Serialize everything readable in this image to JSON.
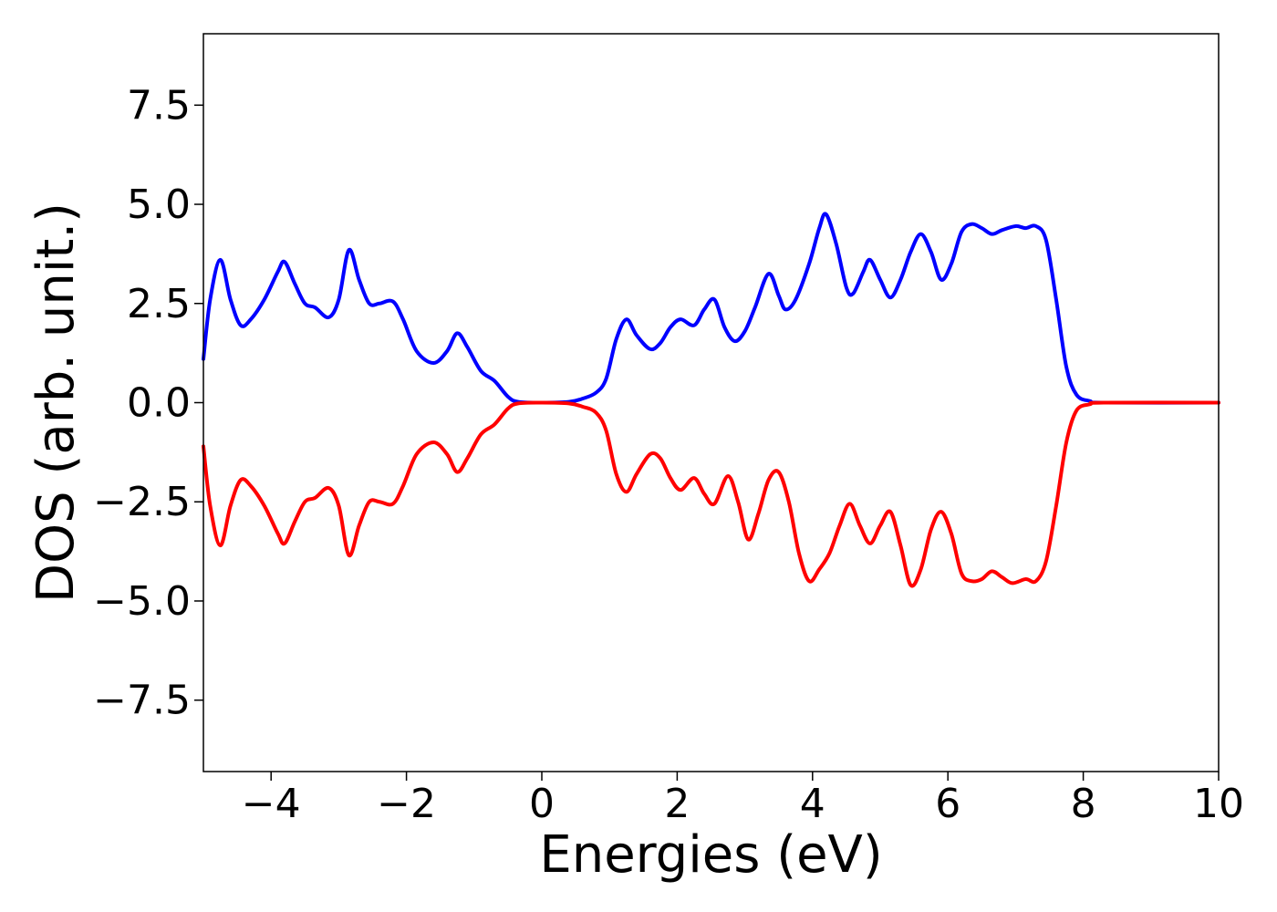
{
  "chart_data": {
    "type": "line",
    "xlabel": "Energies (eV)",
    "ylabel": "DOS (arb. unit.)",
    "xlim": [
      -5,
      10
    ],
    "ylim": [
      -9.3,
      9.3
    ],
    "xticks": [
      -4,
      -2,
      0,
      2,
      4,
      6,
      8,
      10
    ],
    "xtick_labels": [
      "−4",
      "−2",
      "0",
      "2",
      "4",
      "6",
      "8",
      "10"
    ],
    "yticks": [
      -7.5,
      -5.0,
      -2.5,
      0.0,
      2.5,
      5.0,
      7.5
    ],
    "ytick_labels": [
      "−7.5",
      "−5.0",
      "−2.5",
      "0.0",
      "2.5",
      "5.0",
      "7.5"
    ],
    "grid": false,
    "legend": "none",
    "series": [
      {
        "color": "#0000ff",
        "points": [
          [
            -5.0,
            1.1
          ],
          [
            -4.9,
            2.6
          ],
          [
            -4.75,
            3.6
          ],
          [
            -4.6,
            2.6
          ],
          [
            -4.45,
            1.95
          ],
          [
            -4.3,
            2.1
          ],
          [
            -4.1,
            2.6
          ],
          [
            -3.9,
            3.3
          ],
          [
            -3.8,
            3.55
          ],
          [
            -3.65,
            3.0
          ],
          [
            -3.5,
            2.5
          ],
          [
            -3.35,
            2.4
          ],
          [
            -3.15,
            2.15
          ],
          [
            -3.0,
            2.6
          ],
          [
            -2.85,
            3.85
          ],
          [
            -2.7,
            3.1
          ],
          [
            -2.55,
            2.5
          ],
          [
            -2.4,
            2.5
          ],
          [
            -2.2,
            2.55
          ],
          [
            -2.05,
            2.1
          ],
          [
            -1.85,
            1.3
          ],
          [
            -1.6,
            1.0
          ],
          [
            -1.4,
            1.3
          ],
          [
            -1.25,
            1.75
          ],
          [
            -1.1,
            1.4
          ],
          [
            -0.9,
            0.8
          ],
          [
            -0.7,
            0.55
          ],
          [
            -0.5,
            0.15
          ],
          [
            -0.35,
            0.02
          ],
          [
            0.0,
            0.0
          ],
          [
            0.4,
            0.02
          ],
          [
            0.6,
            0.1
          ],
          [
            0.8,
            0.25
          ],
          [
            0.95,
            0.6
          ],
          [
            1.1,
            1.6
          ],
          [
            1.25,
            2.1
          ],
          [
            1.4,
            1.7
          ],
          [
            1.6,
            1.35
          ],
          [
            1.75,
            1.5
          ],
          [
            1.9,
            1.9
          ],
          [
            2.05,
            2.1
          ],
          [
            2.25,
            1.95
          ],
          [
            2.4,
            2.35
          ],
          [
            2.55,
            2.6
          ],
          [
            2.7,
            1.9
          ],
          [
            2.85,
            1.55
          ],
          [
            3.0,
            1.8
          ],
          [
            3.15,
            2.4
          ],
          [
            3.35,
            3.25
          ],
          [
            3.5,
            2.7
          ],
          [
            3.6,
            2.35
          ],
          [
            3.75,
            2.6
          ],
          [
            3.95,
            3.5
          ],
          [
            4.1,
            4.4
          ],
          [
            4.2,
            4.75
          ],
          [
            4.35,
            4.0
          ],
          [
            4.5,
            2.9
          ],
          [
            4.6,
            2.75
          ],
          [
            4.75,
            3.3
          ],
          [
            4.85,
            3.6
          ],
          [
            5.0,
            3.1
          ],
          [
            5.15,
            2.65
          ],
          [
            5.3,
            3.1
          ],
          [
            5.45,
            3.8
          ],
          [
            5.6,
            4.25
          ],
          [
            5.75,
            3.8
          ],
          [
            5.9,
            3.1
          ],
          [
            6.05,
            3.5
          ],
          [
            6.2,
            4.3
          ],
          [
            6.35,
            4.5
          ],
          [
            6.5,
            4.4
          ],
          [
            6.65,
            4.25
          ],
          [
            6.8,
            4.35
          ],
          [
            7.0,
            4.45
          ],
          [
            7.15,
            4.4
          ],
          [
            7.3,
            4.45
          ],
          [
            7.45,
            4.1
          ],
          [
            7.6,
            2.6
          ],
          [
            7.75,
            0.9
          ],
          [
            7.9,
            0.2
          ],
          [
            8.1,
            0.04
          ],
          [
            8.3,
            0.0
          ],
          [
            10.0,
            0.0
          ]
        ]
      },
      {
        "color": "#ff0000",
        "points": [
          [
            -5.0,
            -1.1
          ],
          [
            -4.9,
            -2.6
          ],
          [
            -4.75,
            -3.6
          ],
          [
            -4.6,
            -2.6
          ],
          [
            -4.45,
            -1.95
          ],
          [
            -4.3,
            -2.1
          ],
          [
            -4.1,
            -2.6
          ],
          [
            -3.9,
            -3.3
          ],
          [
            -3.8,
            -3.55
          ],
          [
            -3.65,
            -3.0
          ],
          [
            -3.5,
            -2.5
          ],
          [
            -3.35,
            -2.4
          ],
          [
            -3.15,
            -2.15
          ],
          [
            -3.0,
            -2.6
          ],
          [
            -2.85,
            -3.85
          ],
          [
            -2.7,
            -3.1
          ],
          [
            -2.55,
            -2.5
          ],
          [
            -2.4,
            -2.5
          ],
          [
            -2.2,
            -2.55
          ],
          [
            -2.05,
            -2.1
          ],
          [
            -1.85,
            -1.3
          ],
          [
            -1.6,
            -1.0
          ],
          [
            -1.4,
            -1.3
          ],
          [
            -1.25,
            -1.75
          ],
          [
            -1.1,
            -1.4
          ],
          [
            -0.9,
            -0.8
          ],
          [
            -0.7,
            -0.55
          ],
          [
            -0.5,
            -0.15
          ],
          [
            -0.35,
            -0.02
          ],
          [
            0.0,
            0.0
          ],
          [
            0.4,
            -0.02
          ],
          [
            0.6,
            -0.1
          ],
          [
            0.8,
            -0.25
          ],
          [
            0.95,
            -0.7
          ],
          [
            1.1,
            -1.8
          ],
          [
            1.25,
            -2.25
          ],
          [
            1.4,
            -1.8
          ],
          [
            1.6,
            -1.3
          ],
          [
            1.75,
            -1.4
          ],
          [
            1.9,
            -1.9
          ],
          [
            2.05,
            -2.2
          ],
          [
            2.25,
            -1.9
          ],
          [
            2.4,
            -2.3
          ],
          [
            2.55,
            -2.55
          ],
          [
            2.75,
            -1.85
          ],
          [
            2.9,
            -2.5
          ],
          [
            3.05,
            -3.45
          ],
          [
            3.2,
            -2.8
          ],
          [
            3.35,
            -1.95
          ],
          [
            3.5,
            -1.75
          ],
          [
            3.65,
            -2.5
          ],
          [
            3.8,
            -3.8
          ],
          [
            3.95,
            -4.5
          ],
          [
            4.1,
            -4.2
          ],
          [
            4.25,
            -3.8
          ],
          [
            4.4,
            -3.1
          ],
          [
            4.55,
            -2.55
          ],
          [
            4.7,
            -3.1
          ],
          [
            4.85,
            -3.55
          ],
          [
            5.0,
            -3.1
          ],
          [
            5.15,
            -2.75
          ],
          [
            5.3,
            -3.6
          ],
          [
            5.45,
            -4.6
          ],
          [
            5.6,
            -4.2
          ],
          [
            5.75,
            -3.2
          ],
          [
            5.9,
            -2.75
          ],
          [
            6.05,
            -3.3
          ],
          [
            6.2,
            -4.3
          ],
          [
            6.35,
            -4.5
          ],
          [
            6.5,
            -4.45
          ],
          [
            6.65,
            -4.25
          ],
          [
            6.8,
            -4.4
          ],
          [
            6.95,
            -4.55
          ],
          [
            7.15,
            -4.45
          ],
          [
            7.3,
            -4.5
          ],
          [
            7.45,
            -4.0
          ],
          [
            7.6,
            -2.6
          ],
          [
            7.75,
            -1.0
          ],
          [
            7.9,
            -0.2
          ],
          [
            8.1,
            -0.04
          ],
          [
            8.3,
            0.0
          ],
          [
            10.0,
            0.0
          ]
        ]
      }
    ]
  }
}
